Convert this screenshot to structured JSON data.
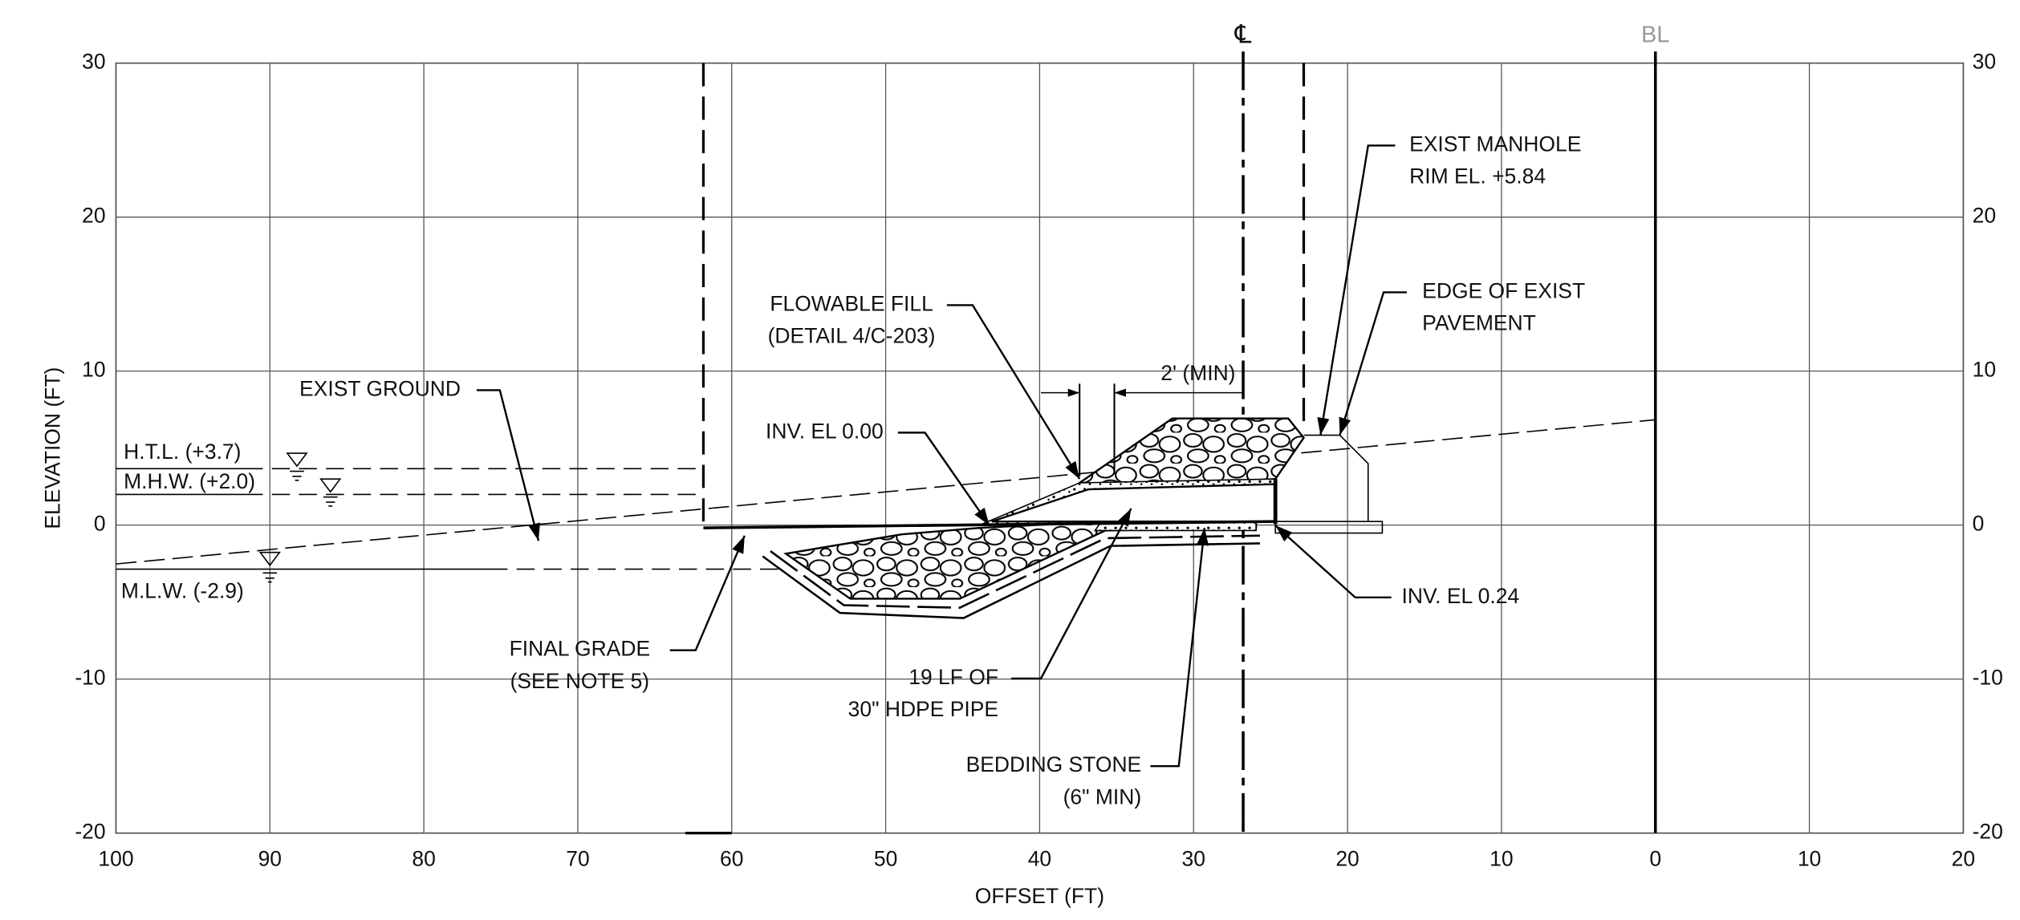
{
  "axes": {
    "x_label": "OFFSET (FT)",
    "y_label": "ELEVATION (FT)",
    "x_ticks": [
      "100",
      "90",
      "80",
      "70",
      "60",
      "50",
      "40",
      "30",
      "20",
      "10",
      "0",
      "10",
      "20"
    ],
    "y_ticks": [
      "30",
      "20",
      "10",
      "0",
      "-10",
      "-20"
    ]
  },
  "markers": {
    "centerline": "℄",
    "baseline": "BL"
  },
  "water_levels": [
    "H.T.L. (+3.7)",
    "M.H.W. (+2.0)",
    "M.L.W. (-2.9)"
  ],
  "annotations": [
    {
      "lines": [
        "EXIST GROUND"
      ]
    },
    {
      "lines": [
        "FLOWABLE FILL",
        "(DETAIL 4/C-203)"
      ]
    },
    {
      "lines": [
        "INV. EL 0.00"
      ]
    },
    {
      "lines": [
        "2' (MIN)"
      ]
    },
    {
      "lines": [
        "EXIST MANHOLE",
        "RIM EL. +5.84"
      ]
    },
    {
      "lines": [
        "EDGE OF EXIST",
        "PAVEMENT"
      ]
    },
    {
      "lines": [
        "INV. EL 0.24"
      ]
    },
    {
      "lines": [
        "FINAL GRADE",
        "(SEE NOTE 5)"
      ]
    },
    {
      "lines": [
        "19 LF OF",
        "30\" HDPE PIPE"
      ]
    },
    {
      "lines": [
        "BEDDING STONE",
        "(6\" MIN)"
      ]
    }
  ]
}
